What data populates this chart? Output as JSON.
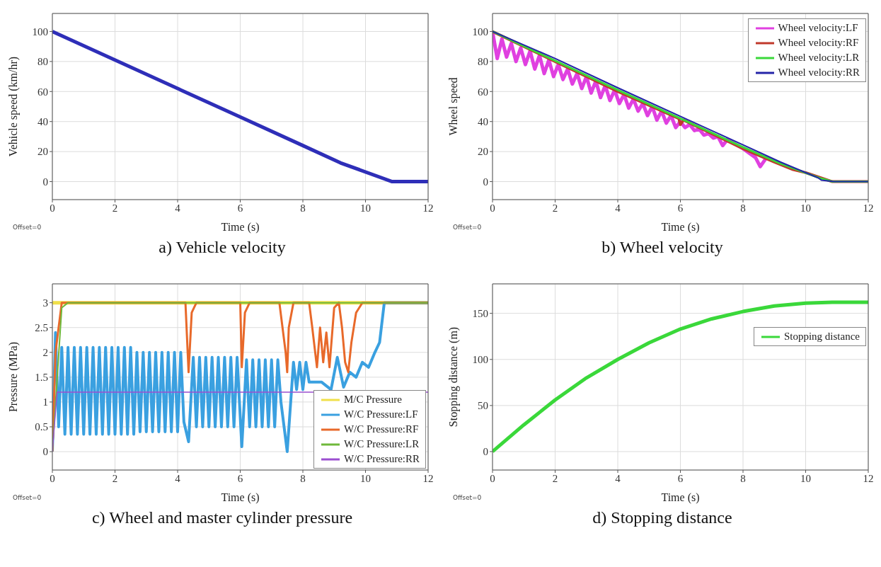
{
  "chart_data": [
    {
      "type": "line",
      "title": "a) Vehicle velocity",
      "xlabel": "Time (s)",
      "ylabel": "Vehicle speed (km/hr)",
      "xlim": [
        0,
        12
      ],
      "ylim": [
        -12,
        112
      ],
      "xticks": [
        0,
        2,
        4,
        6,
        8,
        10,
        12
      ],
      "yticks": [
        0,
        20,
        40,
        60,
        80,
        100
      ],
      "grid": true,
      "annotations": [
        "Offset=0"
      ],
      "series": [
        {
          "color": "#2e2eb8",
          "x": [
            0,
            2,
            4,
            6,
            8,
            9.2,
            10.85,
            12
          ],
          "values": [
            100,
            81,
            62,
            43,
            24,
            12.5,
            0,
            0
          ]
        }
      ]
    },
    {
      "type": "line",
      "title": "b) Wheel velocity",
      "xlabel": "Time (s)",
      "ylabel": "Wheel speed",
      "xlim": [
        0,
        12
      ],
      "ylim": [
        -12,
        112
      ],
      "xticks": [
        0,
        2,
        4,
        6,
        8,
        10,
        12
      ],
      "yticks": [
        0,
        20,
        40,
        60,
        80,
        100
      ],
      "grid": true,
      "legend": "top right",
      "annotations": [
        "Offset=0"
      ],
      "series": [
        {
          "name": "Wheel velocity:LF",
          "color": "#e040e0",
          "x": [
            0,
            0.15,
            0.3,
            0.45,
            0.6,
            0.75,
            0.9,
            1.05,
            1.2,
            1.35,
            1.5,
            1.65,
            1.8,
            1.95,
            2.1,
            2.25,
            2.4,
            2.55,
            2.7,
            2.85,
            3.0,
            3.15,
            3.3,
            3.45,
            3.6,
            3.75,
            3.9,
            4.05,
            4.2,
            4.35,
            4.5,
            4.65,
            4.8,
            4.95,
            5.1,
            5.25,
            5.4,
            5.55,
            5.7,
            5.85,
            6.0,
            6.15,
            6.3,
            6.45,
            6.6,
            6.75,
            6.9,
            7.05,
            7.2,
            7.35,
            7.5,
            8.0,
            8.4,
            8.55,
            8.75,
            9.2
          ],
          "values": [
            100,
            82,
            95,
            83,
            92,
            80,
            89,
            78,
            87,
            75,
            84,
            72,
            81,
            70,
            78,
            68,
            75,
            65,
            72,
            62,
            70,
            59,
            67,
            56,
            64,
            54,
            61,
            52,
            58,
            49,
            55,
            47,
            52,
            44,
            50,
            41,
            47,
            39,
            44,
            36,
            40,
            36,
            38,
            34,
            35,
            31,
            32,
            29,
            30,
            24,
            28,
            22,
            16,
            10,
            16,
            12
          ]
        },
        {
          "name": "Wheel velocity:RF",
          "color": "#c0392b",
          "x": [
            0,
            2,
            4,
            5.95,
            6.0,
            6.1,
            8,
            9,
            9.6,
            10,
            10.85,
            12
          ],
          "values": [
            100,
            80,
            60,
            42,
            38,
            41,
            22,
            13,
            8,
            6,
            0,
            0
          ]
        },
        {
          "name": "Wheel velocity:LR",
          "color": "#3ad83a",
          "x": [
            0,
            4,
            8,
            9.2,
            10.5,
            10.85,
            12
          ],
          "values": [
            100,
            61,
            23,
            12,
            2,
            0,
            0
          ]
        },
        {
          "name": "Wheel velocity:RR",
          "color": "#2424a8",
          "x": [
            0,
            2,
            4,
            6,
            8,
            9.2,
            10.4,
            10.5,
            10.9,
            12
          ],
          "values": [
            100,
            82,
            62.5,
            43.5,
            24.5,
            13,
            2.5,
            1,
            0,
            0
          ]
        }
      ]
    },
    {
      "type": "line",
      "title": "c) Wheel and master cylinder pressure",
      "xlabel": "Time (s)",
      "ylabel": "Pressure (MPa)",
      "xlim": [
        0,
        12
      ],
      "ylim": [
        -0.37,
        3.38
      ],
      "xticks": [
        0,
        2,
        4,
        6,
        8,
        10,
        12
      ],
      "yticks": [
        0,
        0.5,
        1,
        1.5,
        2,
        2.5,
        3
      ],
      "grid": true,
      "legend": "bottom right",
      "annotations": [
        "Offset=0"
      ],
      "series": [
        {
          "name": "M/C Pressure",
          "color": "#f0e04a",
          "x": [
            0,
            12
          ],
          "values": [
            3,
            3
          ]
        },
        {
          "name": "W/C Pressure:LF",
          "color": "#3aa0e0",
          "x": [
            0,
            0.1,
            0.2,
            0.3,
            0.4,
            0.5,
            0.6,
            0.7,
            0.8,
            0.9,
            1.0,
            1.1,
            1.2,
            1.3,
            1.4,
            1.5,
            1.6,
            1.7,
            1.8,
            1.9,
            2.0,
            2.1,
            2.2,
            2.3,
            2.4,
            2.5,
            2.6,
            2.7,
            2.8,
            2.9,
            3.0,
            3.1,
            3.2,
            3.3,
            3.4,
            3.5,
            3.6,
            3.7,
            3.8,
            3.9,
            4.0,
            4.1,
            4.2,
            4.35,
            4.5,
            4.6,
            4.7,
            4.8,
            4.9,
            5.0,
            5.1,
            5.2,
            5.3,
            5.4,
            5.5,
            5.6,
            5.7,
            5.8,
            5.9,
            6.05,
            6.2,
            6.3,
            6.4,
            6.5,
            6.6,
            6.7,
            6.8,
            6.9,
            7.0,
            7.1,
            7.2,
            7.3,
            7.5,
            7.7,
            7.8,
            7.9,
            8.0,
            8.1,
            8.2,
            8.4,
            8.6,
            8.9,
            9.1,
            9.3,
            9.5,
            9.7,
            9.9,
            10.1,
            10.3,
            10.45,
            10.6,
            12
          ],
          "values": [
            0,
            2.4,
            0.5,
            2.1,
            0.35,
            2.1,
            0.35,
            2.1,
            0.35,
            2.1,
            0.35,
            2.1,
            0.35,
            2.1,
            0.35,
            2.1,
            0.35,
            2.1,
            0.35,
            2.1,
            0.35,
            2.1,
            0.35,
            2.1,
            0.35,
            2.1,
            0.35,
            2.0,
            0.4,
            2.0,
            0.4,
            2.0,
            0.4,
            2.0,
            0.4,
            2.0,
            0.4,
            2.0,
            0.4,
            2.0,
            0.4,
            2.0,
            0.6,
            0.2,
            1.9,
            0.5,
            1.9,
            0.5,
            1.9,
            0.5,
            1.9,
            0.5,
            1.9,
            0.5,
            1.9,
            0.5,
            1.9,
            0.5,
            1.9,
            0.1,
            1.85,
            0.5,
            1.85,
            0.5,
            1.85,
            0.5,
            1.85,
            0.5,
            1.85,
            0.5,
            1.85,
            1.0,
            0,
            1.8,
            1.25,
            1.8,
            1.25,
            1.8,
            1.4,
            1.4,
            1.4,
            1.25,
            1.9,
            1.3,
            1.6,
            1.5,
            1.8,
            1.7,
            2.0,
            2.2,
            3,
            3
          ]
        },
        {
          "name": "W/C Pressure:RF",
          "color": "#e8692a",
          "x": [
            0,
            0.1,
            0.3,
            4.25,
            4.35,
            4.45,
            4.6,
            6.0,
            6.05,
            6.15,
            6.3,
            7.25,
            7.35,
            7.45,
            7.5,
            7.55,
            7.7,
            8.2,
            8.3,
            8.45,
            8.55,
            8.65,
            8.75,
            8.85,
            9.0,
            9.15,
            9.25,
            9.35,
            9.45,
            9.55,
            9.7,
            9.9,
            12
          ],
          "values": [
            0,
            2.0,
            3,
            3,
            1.6,
            2.8,
            3,
            3,
            1.7,
            2.8,
            3,
            3,
            2.5,
            2.0,
            1.6,
            2.5,
            3,
            3,
            2.5,
            1.7,
            2.5,
            1.8,
            2.4,
            1.7,
            2.9,
            3,
            2.5,
            1.8,
            1.6,
            2.2,
            2.8,
            3,
            3
          ]
        },
        {
          "name": "W/C Pressure:LR",
          "color": "#6fb83a",
          "x": [
            0,
            0.3,
            0.5,
            12
          ],
          "values": [
            0,
            2.9,
            3,
            3
          ]
        },
        {
          "name": "W/C Pressure:RR",
          "color": "#9b4fd0",
          "x": [
            0,
            0.15,
            12
          ],
          "values": [
            0,
            1.2,
            1.2
          ]
        }
      ]
    },
    {
      "type": "line",
      "title": "d) Stopping distance",
      "xlabel": "Time (s)",
      "ylabel": "Stopping distance (m)",
      "xlim": [
        0,
        12
      ],
      "ylim": [
        -20,
        182
      ],
      "xticks": [
        0,
        2,
        4,
        6,
        8,
        10,
        12
      ],
      "yticks": [
        0,
        50,
        100,
        150
      ],
      "grid": true,
      "legend": "right",
      "annotations": [
        "Offset=0"
      ],
      "series": [
        {
          "name": "Stopping distance",
          "color": "#3ad83a",
          "x": [
            0,
            1,
            2,
            3,
            4,
            5,
            6,
            7,
            8,
            9,
            10,
            10.85,
            12
          ],
          "values": [
            0,
            29,
            56,
            80,
            100,
            118,
            133,
            144,
            152,
            158,
            161,
            162,
            162
          ]
        }
      ]
    }
  ]
}
